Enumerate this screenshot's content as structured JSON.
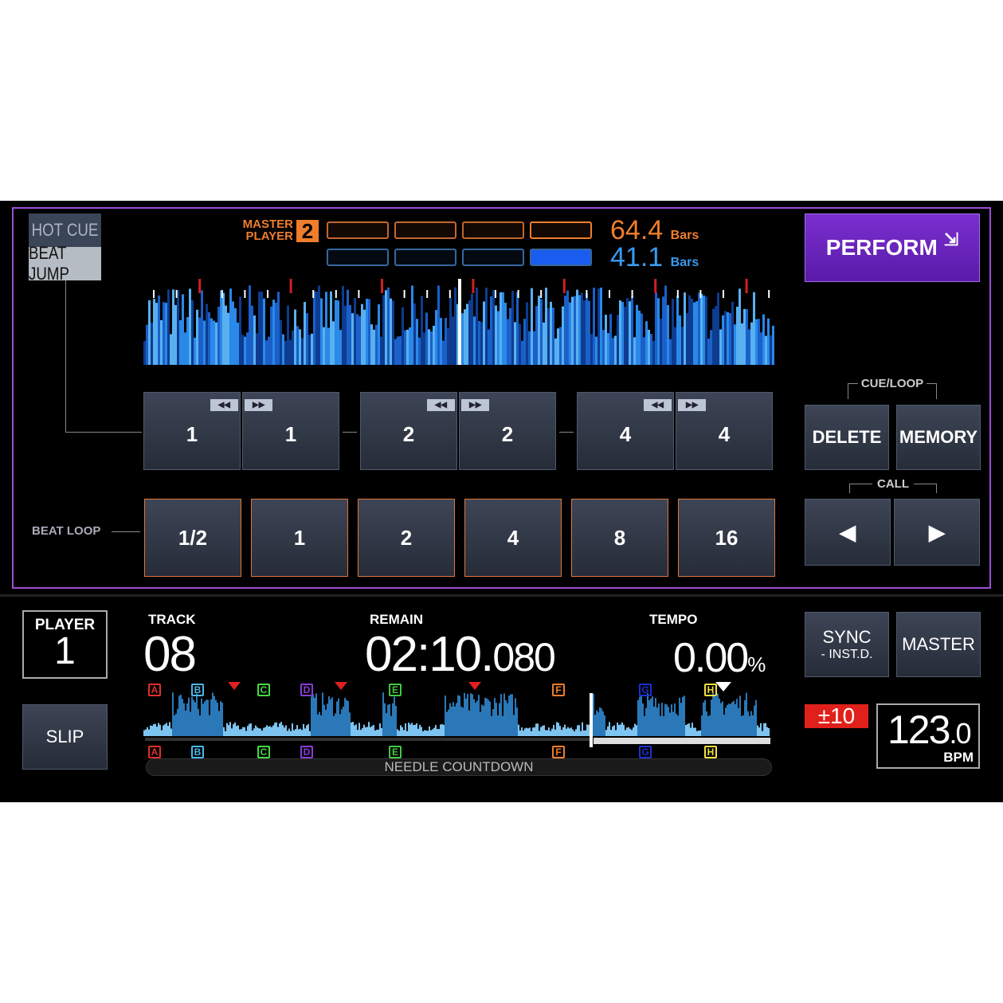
{
  "mode": {
    "hot_cue": "HOT CUE",
    "beat_jump": "BEAT JUMP"
  },
  "master": {
    "line1": "MASTER",
    "line2": "PLAYER",
    "number": "2",
    "bars_master": "64.4",
    "bars_self": "41.1",
    "bars_unit": "Bars",
    "colors": {
      "master": "#f07d2c",
      "self": "#3a9bf0"
    }
  },
  "perform": {
    "label": "PERFORM",
    "icon": "collapse-arrows-icon"
  },
  "beat_jump": {
    "pairs": [
      {
        "back": "1",
        "fwd": "1"
      },
      {
        "back": "2",
        "fwd": "2"
      },
      {
        "back": "4",
        "fwd": "4"
      }
    ]
  },
  "beat_loop": {
    "label": "BEAT LOOP",
    "values": [
      "1/2",
      "1",
      "2",
      "4",
      "8",
      "16"
    ]
  },
  "cue_loop": {
    "label": "CUE/LOOP",
    "delete": "DELETE",
    "memory": "MEMORY",
    "call": "CALL"
  },
  "player": {
    "label": "PLAYER",
    "number": "1"
  },
  "track": {
    "label": "TRACK",
    "value": "08"
  },
  "remain": {
    "label": "REMAIN",
    "main": "02:10.",
    "ms": "080"
  },
  "tempo": {
    "label": "TEMPO",
    "value": "0.00",
    "unit": "%",
    "range": "±10"
  },
  "sync": {
    "label": "SYNC",
    "sub": "- INST.D."
  },
  "master_btn": "MASTER",
  "slip": "SLIP",
  "bpm": {
    "value": "123",
    "decimal": ".0",
    "unit": "BPM"
  },
  "needle": "NEEDLE COUNTDOWN",
  "hot_cues": [
    {
      "l": "A",
      "c": "#e0302a"
    },
    {
      "l": "B",
      "c": "#4ab8e8"
    },
    {
      "l": "C",
      "c": "#44d844"
    },
    {
      "l": "D",
      "c": "#8a3cd8"
    },
    {
      "l": "E",
      "c": "#44c844"
    },
    {
      "l": "F",
      "c": "#f07d2c"
    },
    {
      "l": "G",
      "c": "#1a30d0"
    },
    {
      "l": "H",
      "c": "#f0e040"
    }
  ],
  "playback_progress": 0.72
}
